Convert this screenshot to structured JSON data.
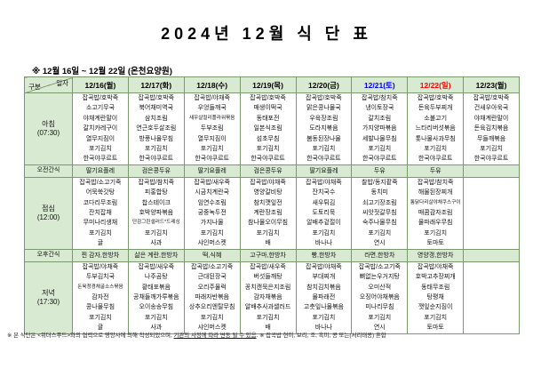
{
  "title": "2024년 12월 식 단 표",
  "subtitle": "※ 12월 16일 ~ 12월 22일 (온천요양원)",
  "corner": {
    "top": "일자",
    "bottom": "구분"
  },
  "colors": {
    "header_bg": "#d9ead3",
    "border": "#7a9a6d",
    "saturday": "#0000ff",
    "sunday": "#ff0000",
    "weekday": "#000000"
  },
  "columns": [
    {
      "label": "12/16(월)",
      "color": "#000000"
    },
    {
      "label": "12/17(화)",
      "color": "#000000"
    },
    {
      "label": "12/18(수)",
      "color": "#000000"
    },
    {
      "label": "12/19(목)",
      "color": "#000000"
    },
    {
      "label": "12/20(금)",
      "color": "#000000"
    },
    {
      "label": "12/21(토)",
      "color": "#0000ff"
    },
    {
      "label": "12/22(일)",
      "color": "#ff0000"
    },
    {
      "label": "12/23(월)",
      "color": "#000000"
    }
  ],
  "rows": [
    {
      "label": "아침",
      "time": "(07:30)",
      "kind": "meal",
      "cells": [
        [
          "잡곡밥/호박죽",
          "소고기무국",
          "야채계란말이",
          "갈치카레구이",
          "열무지짐이",
          "포기김치",
          "한국야쿠르트"
        ],
        [
          "잡곡밥/호박죽",
          "북어채미역국",
          "삼치조림",
          "연근호두살조림",
          "방풍나물무침",
          "포기김치",
          "한국야쿠르트"
        ],
        [
          "잡곡밥/야채죽",
          "우엉들깨국",
          "새우살컬리플라워볶음",
          "두부조림",
          "열무지짐이",
          "포기김치",
          "한국야쿠르트"
        ],
        [
          "잡곡밥/호박죽",
          "매생이떡국",
          "동태포전",
          "일본식조림",
          "섬초무침",
          "포기김치",
          "한국야쿠르트"
        ],
        [
          "잡곡밥/호박죽",
          "맑은콩나물국",
          "우육장조림",
          "도라지볶음",
          "봄동된장나물",
          "포기김치",
          "한국야쿠르트"
        ],
        [
          "잡곡밥/참치죽",
          "냉이토장국",
          "갈치조림",
          "가지양파볶음",
          "세발나물무침",
          "포기김치",
          "한국야쿠르트"
        ],
        [
          "잡곡밥/호박죽",
          "돈육두부찌개",
          "소불고기",
          "느타리버섯볶음",
          "톳나물사과무침",
          "포기김치",
          "한국야쿠르트"
        ],
        [
          "잡곡밥/호박죽",
          "건새우아욱국",
          "야채계란말이",
          "돈육김치볶음",
          "무들깨볶음",
          "포기김치",
          "한국야쿠르트"
        ]
      ]
    },
    {
      "label": "오전간식",
      "time": "",
      "kind": "snack",
      "cells": [
        "딸기요플레",
        "검은콩두유",
        "딸기요플레",
        "검은콩두유",
        "딸기요플레",
        "두유",
        "두유",
        ""
      ]
    },
    {
      "label": "점심",
      "time": "(12:00)",
      "kind": "meal",
      "cells": [
        [
          "잡곡밥/소고기죽",
          "어묵쑥갓탕",
          "코다리무조림",
          "잔치잡채",
          "무미나리생채",
          "포기김치",
          "귤"
        ],
        [
          "잡곡밥/참치죽",
          "피홍합탕",
          "찹스테이크",
          "호박양파볶음",
          "단감그린샐러드*드레싱",
          "포기김치",
          "사과"
        ],
        [
          "잡곡밥/새우죽",
          "시금치계란국",
          "임연수조림",
          "궁중녹두전",
          "가지나물",
          "포기김치",
          "샤인머스켓"
        ],
        [
          "잡곡밥/야채죽",
          "영양갈비탕",
          "참치깻잎전",
          "계란장조림",
          "참나물오이무침",
          "포기김치",
          "배"
        ],
        [
          "잡곡밥/야채죽",
          "잔치국수",
          "새우튀김",
          "도토리묵",
          "알배추겉절이",
          "포기김치",
          "바나나"
        ],
        [
          "찰밥/동지팥죽",
          "동치미",
          "쇠고기장조림",
          "씨앗젓갈무침",
          "숙주나물무침",
          "포기김치",
          "연시"
        ],
        [
          "잡곡밥/참치죽",
          "해물된장찌개",
          "통닭다리살야채쿠스구이",
          "매콤감자조림",
          "물파래우무침",
          "포기김치",
          "토마토"
        ],
        []
      ]
    },
    {
      "label": "오후간식",
      "time": "",
      "kind": "snack",
      "cells": [
        "찐 감자,한방차",
        "삶은 계란,한방차",
        "떡,식혜",
        "고구마,한방차",
        "빵,한방차",
        "라면,한방차",
        "영양갱,한방차",
        ""
      ]
    },
    {
      "label": "저녁",
      "time": "(17:30)",
      "kind": "meal",
      "cells": [
        [
          "잡곡밥/야채죽",
          "두부김치국",
          "돈육청경채굴소스볶음",
          "감자전",
          "콩나물무침",
          "포기김치",
          "귤"
        ],
        [
          "잡곡밥/새우죽",
          "나주곰탕",
          "황태포볶음",
          "공채들깨가루볶음",
          "오이송송무침",
          "포기김치",
          "사과"
        ],
        [
          "잡곡밥/소고기죽",
          "근대된장국",
          "오리주물럭",
          "파래자반볶음",
          "상추오리엔탈무침",
          "포기김치",
          "샤인머스켓"
        ],
        [
          "잡곡밥/새우죽",
          "버섯들깨탕",
          "꽁치캔묵은지조림",
          "감자채볶음",
          "알배추사과샐러드",
          "포기김치",
          "배"
        ],
        [
          "잡곡밥/야채죽",
          "부대찌개",
          "참치김치볶음",
          "물파래전",
          "고춧잎나물볶음",
          "포기김치",
          "바나나"
        ],
        [
          "잡곡밥/소고기죽",
          "뼈없는우거지탕",
          "오미산적",
          "오징어야채볶음",
          "미나리무침",
          "포기김치",
          "연시"
        ],
        [
          "잡곡밥/야채죽",
          "호박고추장찌개",
          "동태무조림",
          "탕평채",
          "깻잎순지짐이",
          "포기김치",
          "토마토"
        ],
        []
      ]
    }
  ],
  "footer": {
    "pre": "※ 본 식단은 <위더스푸드>와의 협력으로 영양사에 의해 작성되었으며, ",
    "underlined": "기관의 사정에 따라 변동 될 수 있음",
    "post": ". ※ 잡곡밥 현미, 보리, 조, 흑미, 콩 또는(서리태콩) 혼합"
  }
}
